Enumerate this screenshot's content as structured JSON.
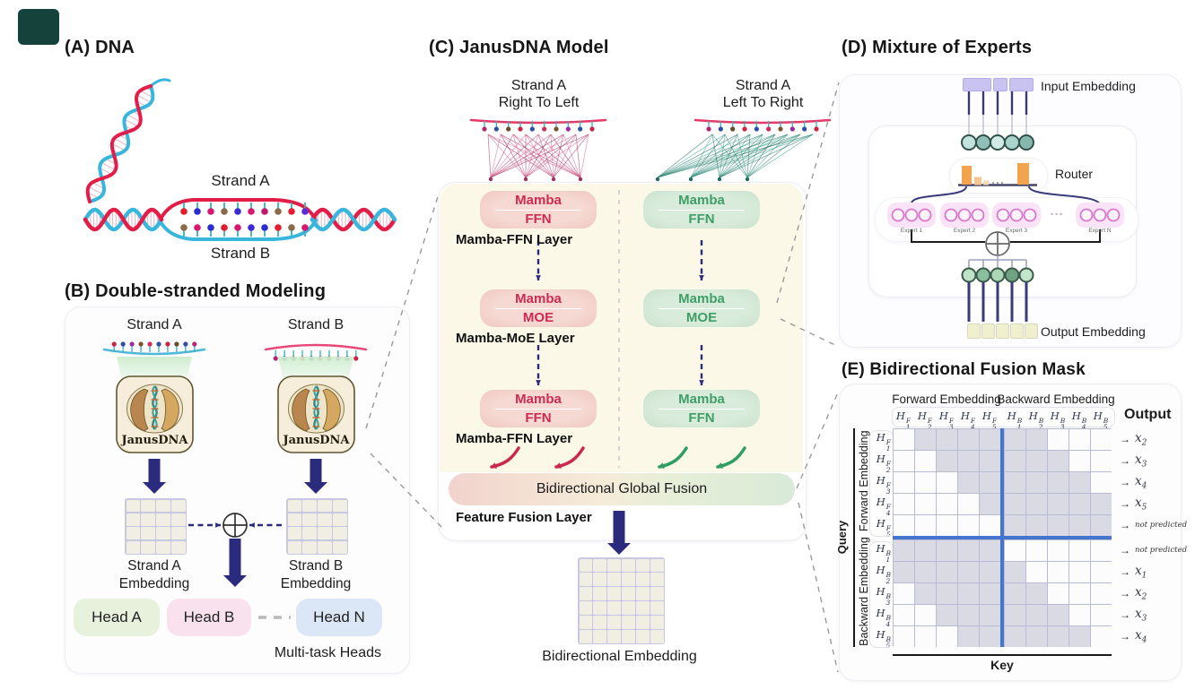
{
  "colors": {
    "navy": "#2b2b7e",
    "red_accent": "#cf2a50",
    "green_accent": "#3f9e68",
    "strand_red": "#e11d48",
    "strand_cyan": "#38b6dc",
    "cream_panel": "#fbf8e8",
    "mask_gray": "#d9dae3",
    "mask_divider_blue": "#4575cf",
    "router_orange": "#f2a44c",
    "input_lavender": "#c9c3f1",
    "output_yellow": "#f0f0d0"
  },
  "panel_a": {
    "title": "(A) DNA",
    "strand_a_label": "Strand A",
    "strand_b_label": "Strand B"
  },
  "panel_b": {
    "title": "(B) Double-stranded Modeling",
    "strand_a_label": "Strand A",
    "strand_b_label": "Strand B",
    "model_name": "JanusDNA",
    "embedding_a": [
      "Strand A",
      "Embedding"
    ],
    "embedding_b": [
      "Strand B",
      "Embedding"
    ],
    "heads": [
      "Head A",
      "Head B",
      "Head N"
    ],
    "multitask_label": "Multi-task Heads"
  },
  "panel_c": {
    "title": "(C) JanusDNA Model",
    "left_stream": [
      "Strand A",
      "Right To Left"
    ],
    "right_stream": [
      "Strand A",
      "Left To Right"
    ],
    "layers": [
      {
        "top": "Mamba",
        "bottom": "FFN",
        "label": "Mamba-FFN Layer"
      },
      {
        "top": "Mamba",
        "bottom": "MOE",
        "label": "Mamba-MoE Layer"
      },
      {
        "top": "Mamba",
        "bottom": "FFN",
        "label": "Mamba-FFN Layer"
      }
    ],
    "fusion_bar": "Bidirectional Global Fusion",
    "fusion_label": "Feature Fusion Layer",
    "output_label": "Bidirectional Embedding"
  },
  "panel_d": {
    "title": "(D) Mixture of Experts",
    "input_label": "Input Embedding",
    "router_label": "Router",
    "experts": [
      "Expert 1",
      "Expert 2",
      "Expert 3",
      "Expert N"
    ],
    "ellipsis": "···",
    "output_label": "Output Embedding"
  },
  "panel_e": {
    "title": "(E) Bidirectional Fusion Mask",
    "forward_header": "Forward Embedding",
    "backward_header": "Backward Embedding",
    "output_header": "Output",
    "query_label": "Query",
    "key_label": "Key",
    "row_group_forward": "Forward Embedding",
    "row_group_backward": "Backward Embedding",
    "arrow_glyph": "→",
    "col_labels": [
      "H_1^F",
      "H_2^F",
      "H_3^F",
      "H_4^F",
      "H_5^F",
      "H_1^B",
      "H_2^B",
      "H_3^B",
      "H_4^B",
      "H_5^B"
    ],
    "row_labels": [
      "H_1^F",
      "H_2^F",
      "H_3^F",
      "H_4^F",
      "H_5^F",
      "H_1^B",
      "H_2^B",
      "H_3^B",
      "H_4^B",
      "H_5^B"
    ],
    "outputs": [
      "x_2",
      "x_3",
      "x_4",
      "x_5",
      "not predicted",
      "not predicted",
      "x_1",
      "x_2",
      "x_3",
      "x_4"
    ],
    "mask_rows": [
      "0111111000",
      "0011111100",
      "0001111110",
      "0000111111",
      "0000011111",
      "1111100000",
      "1111110000",
      "0111111000",
      "0011111100",
      "0001111110"
    ]
  }
}
